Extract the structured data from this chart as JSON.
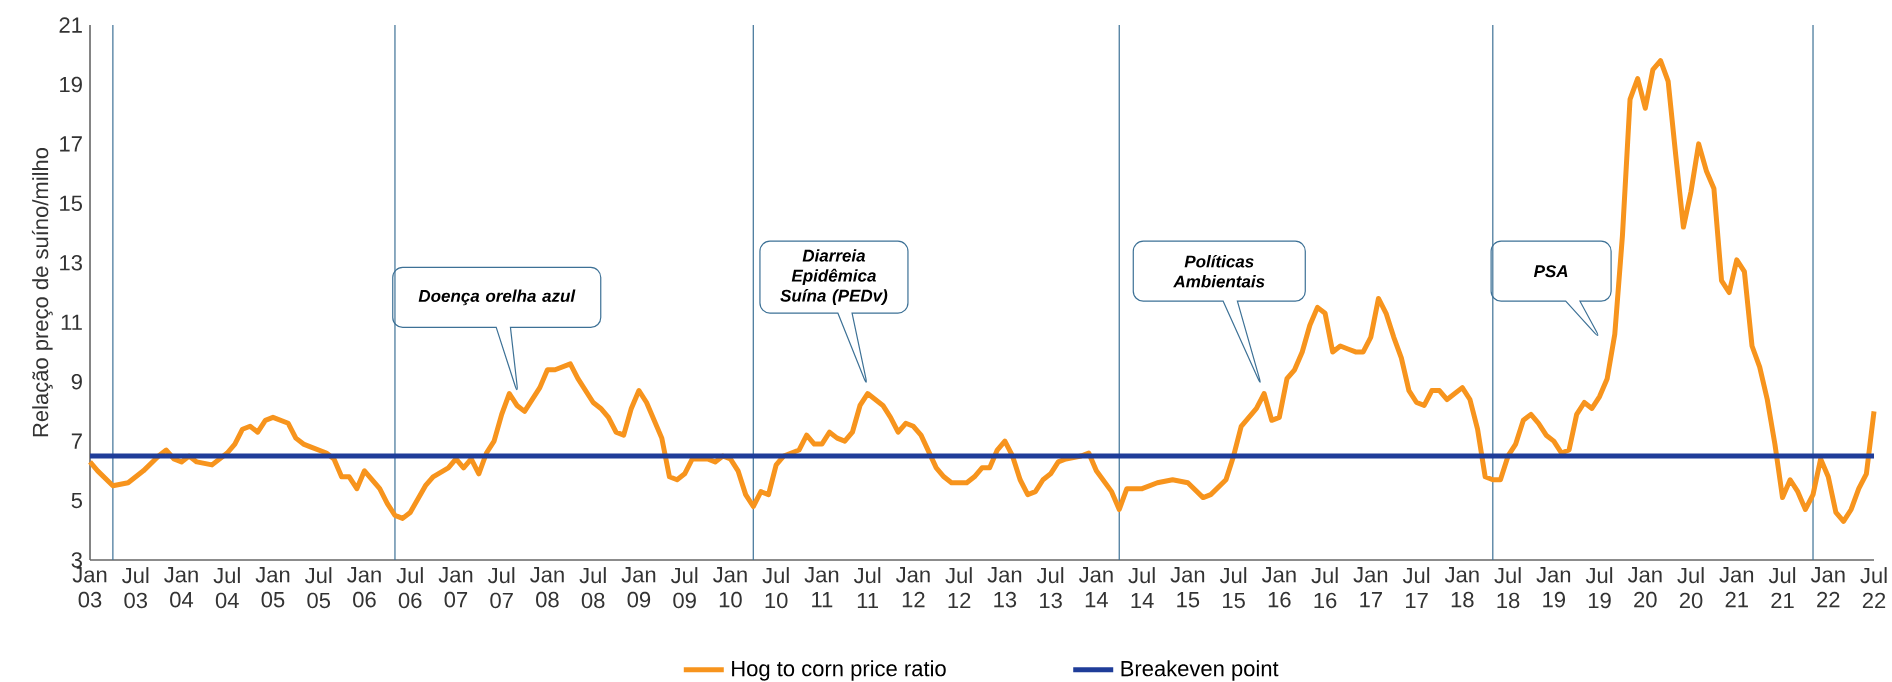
{
  "chart_data": {
    "type": "line",
    "ylabel": "Relação preço de suíno/milho",
    "xlim": [
      "2003-01",
      "2022-07"
    ],
    "ylim": [
      3,
      21
    ],
    "yticks": [
      3,
      5,
      7,
      9,
      11,
      13,
      15,
      17,
      19,
      21
    ],
    "xticks": [
      {
        "value": "2003-01",
        "label": "Jan 03"
      },
      {
        "value": "2003-07",
        "label": "Jul 03"
      },
      {
        "value": "2004-01",
        "label": "Jan 04"
      },
      {
        "value": "2004-07",
        "label": "Jul 04"
      },
      {
        "value": "2005-01",
        "label": "Jan 05"
      },
      {
        "value": "2005-07",
        "label": "Jul 05"
      },
      {
        "value": "2006-01",
        "label": "Jan 06"
      },
      {
        "value": "2006-07",
        "label": "Jul 06"
      },
      {
        "value": "2007-01",
        "label": "Jan 07"
      },
      {
        "value": "2007-07",
        "label": "Jul 07"
      },
      {
        "value": "2008-01",
        "label": "Jan 08"
      },
      {
        "value": "2008-07",
        "label": "Jul 08"
      },
      {
        "value": "2009-01",
        "label": "Jan 09"
      },
      {
        "value": "2009-07",
        "label": "Jul 09"
      },
      {
        "value": "2010-01",
        "label": "Jan 10"
      },
      {
        "value": "2010-07",
        "label": "Jul 10"
      },
      {
        "value": "2011-01",
        "label": "Jan 11"
      },
      {
        "value": "2011-07",
        "label": "Jul 11"
      },
      {
        "value": "2012-01",
        "label": "Jan 12"
      },
      {
        "value": "2012-07",
        "label": "Jul 12"
      },
      {
        "value": "2013-01",
        "label": "Jan 13"
      },
      {
        "value": "2013-07",
        "label": "Jul 13"
      },
      {
        "value": "2014-01",
        "label": "Jan 14"
      },
      {
        "value": "2014-07",
        "label": "Jul 14"
      },
      {
        "value": "2015-01",
        "label": "Jan 15"
      },
      {
        "value": "2015-07",
        "label": "Jul 15"
      },
      {
        "value": "2016-01",
        "label": "Jan 16"
      },
      {
        "value": "2016-07",
        "label": "Jul 16"
      },
      {
        "value": "2017-01",
        "label": "Jan 17"
      },
      {
        "value": "2017-07",
        "label": "Jul 17"
      },
      {
        "value": "2018-01",
        "label": "Jan 18"
      },
      {
        "value": "2018-07",
        "label": "Jul 18"
      },
      {
        "value": "2019-01",
        "label": "Jan 19"
      },
      {
        "value": "2019-07",
        "label": "Jul 19"
      },
      {
        "value": "2020-01",
        "label": "Jan 20"
      },
      {
        "value": "2020-07",
        "label": "Jul 20"
      },
      {
        "value": "2021-01",
        "label": "Jan 21"
      },
      {
        "value": "2021-07",
        "label": "Jul 21"
      },
      {
        "value": "2022-01",
        "label": "Jan 22"
      },
      {
        "value": "2022-07",
        "label": "Jul 22"
      }
    ],
    "legend": "bottom",
    "series": [
      {
        "name": "Hog to corn price ratio",
        "color": "#f7941d",
        "x": [
          "2003-01",
          "2003-02",
          "2003-04",
          "2003-06",
          "2003-08",
          "2003-10",
          "2003-11",
          "2003-12",
          "2004-01",
          "2004-02",
          "2004-03",
          "2004-05",
          "2004-07",
          "2004-08",
          "2004-09",
          "2004-10",
          "2004-11",
          "2004-12",
          "2005-01",
          "2005-03",
          "2005-04",
          "2005-05",
          "2005-06",
          "2005-08",
          "2005-09",
          "2005-10",
          "2005-11",
          "2005-12",
          "2006-01",
          "2006-03",
          "2006-04",
          "2006-05",
          "2006-06",
          "2006-07",
          "2006-09",
          "2006-10",
          "2006-12",
          "2007-01",
          "2007-02",
          "2007-03",
          "2007-04",
          "2007-05",
          "2007-06",
          "2007-07",
          "2007-08",
          "2007-09",
          "2007-10",
          "2007-12",
          "2008-01",
          "2008-02",
          "2008-04",
          "2008-05",
          "2008-07",
          "2008-08",
          "2008-09",
          "2008-10",
          "2008-11",
          "2008-12",
          "2009-01",
          "2009-02",
          "2009-04",
          "2009-05",
          "2009-06",
          "2009-07",
          "2009-08",
          "2009-10",
          "2009-11",
          "2009-12",
          "2010-01",
          "2010-02",
          "2010-03",
          "2010-04",
          "2010-05",
          "2010-06",
          "2010-07",
          "2010-08",
          "2010-10",
          "2010-11",
          "2010-12",
          "2011-01",
          "2011-02",
          "2011-03",
          "2011-04",
          "2011-05",
          "2011-06",
          "2011-07",
          "2011-09",
          "2011-10",
          "2011-11",
          "2011-12",
          "2012-01",
          "2012-02",
          "2012-04",
          "2012-05",
          "2012-06",
          "2012-08",
          "2012-09",
          "2012-10",
          "2012-11",
          "2012-12",
          "2013-01",
          "2013-02",
          "2013-03",
          "2013-04",
          "2013-05",
          "2013-06",
          "2013-07",
          "2013-08",
          "2013-09",
          "2013-11",
          "2013-12",
          "2014-01",
          "2014-03",
          "2014-04",
          "2014-05",
          "2014-07",
          "2014-09",
          "2014-11",
          "2015-01",
          "2015-03",
          "2015-04",
          "2015-06",
          "2015-07",
          "2015-08",
          "2015-09",
          "2015-10",
          "2015-11",
          "2015-12",
          "2016-01",
          "2016-02",
          "2016-03",
          "2016-04",
          "2016-05",
          "2016-06",
          "2016-07",
          "2016-08",
          "2016-09",
          "2016-10",
          "2016-11",
          "2016-12",
          "2017-01",
          "2017-02",
          "2017-03",
          "2017-04",
          "2017-05",
          "2017-06",
          "2017-07",
          "2017-08",
          "2017-09",
          "2017-10",
          "2017-11",
          "2017-12",
          "2018-01",
          "2018-02",
          "2018-03",
          "2018-04",
          "2018-05",
          "2018-06",
          "2018-07",
          "2018-08",
          "2018-09",
          "2018-10",
          "2018-11",
          "2018-12",
          "2019-01",
          "2019-02",
          "2019-03",
          "2019-04",
          "2019-05",
          "2019-06",
          "2019-07",
          "2019-08",
          "2019-09",
          "2019-10",
          "2019-11",
          "2019-12",
          "2020-01",
          "2020-02",
          "2020-03",
          "2020-04",
          "2020-05",
          "2020-06",
          "2020-07",
          "2020-08",
          "2020-09",
          "2020-10",
          "2020-11",
          "2020-12",
          "2021-01",
          "2021-02",
          "2021-03",
          "2021-04",
          "2021-05",
          "2021-06",
          "2021-07",
          "2021-08",
          "2021-09",
          "2021-10",
          "2021-11",
          "2021-12",
          "2022-01",
          "2022-02",
          "2022-03",
          "2022-04",
          "2022-05",
          "2022-06",
          "2022-07"
        ],
        "values": [
          6.3,
          6.0,
          5.5,
          5.6,
          6.0,
          6.5,
          6.7,
          6.4,
          6.3,
          6.5,
          6.3,
          6.2,
          6.6,
          6.9,
          7.4,
          7.5,
          7.3,
          7.7,
          7.8,
          7.6,
          7.1,
          6.9,
          6.8,
          6.6,
          6.4,
          5.8,
          5.8,
          5.4,
          6.0,
          5.4,
          4.9,
          4.5,
          4.4,
          4.6,
          5.5,
          5.8,
          6.1,
          6.4,
          6.1,
          6.4,
          5.9,
          6.6,
          7.0,
          7.9,
          8.6,
          8.2,
          8.0,
          8.8,
          9.4,
          9.4,
          9.6,
          9.1,
          8.3,
          8.1,
          7.8,
          7.3,
          7.2,
          8.1,
          8.7,
          8.3,
          7.1,
          5.8,
          5.7,
          5.9,
          6.4,
          6.4,
          6.3,
          6.5,
          6.4,
          6.0,
          5.2,
          4.8,
          5.3,
          5.2,
          6.2,
          6.5,
          6.7,
          7.2,
          6.9,
          6.9,
          7.3,
          7.1,
          7.0,
          7.3,
          8.2,
          8.6,
          8.2,
          7.8,
          7.3,
          7.6,
          7.5,
          7.2,
          6.1,
          5.8,
          5.6,
          5.6,
          5.8,
          6.1,
          6.1,
          6.7,
          7.0,
          6.5,
          5.7,
          5.2,
          5.3,
          5.7,
          5.9,
          6.3,
          6.4,
          6.5,
          6.6,
          6.0,
          5.3,
          4.7,
          5.4,
          5.4,
          5.6,
          5.7,
          5.6,
          5.1,
          5.2,
          5.7,
          6.5,
          7.5,
          7.8,
          8.1,
          8.6,
          7.7,
          7.8,
          9.1,
          9.4,
          10.0,
          10.9,
          11.5,
          11.3,
          10.0,
          10.2,
          10.1,
          10.0,
          10.0,
          10.5,
          11.8,
          11.3,
          10.5,
          9.8,
          8.7,
          8.3,
          8.2,
          8.7,
          8.7,
          8.4,
          8.6,
          8.8,
          8.4,
          7.4,
          5.8,
          5.7,
          5.7,
          6.5,
          6.9,
          7.7,
          7.9,
          7.6,
          7.2,
          7.0,
          6.6,
          6.7,
          7.9,
          8.3,
          8.1,
          8.5,
          9.1,
          10.6,
          13.9,
          18.5,
          19.2,
          18.2,
          19.5,
          19.8,
          19.1,
          16.6,
          14.2,
          15.4,
          17.0,
          16.1,
          15.5,
          12.4,
          12.0,
          13.1,
          12.7,
          10.2,
          9.5,
          8.4,
          6.9,
          5.1,
          5.7,
          5.3,
          4.7,
          5.2,
          6.4,
          5.8,
          4.6,
          4.3,
          4.7,
          5.4,
          5.9,
          8.0
        ]
      },
      {
        "name": "Breakeven point",
        "color": "#1f3d99",
        "x": [
          "2003-01",
          "2022-07"
        ],
        "values": [
          6.5,
          6.5
        ]
      }
    ],
    "ref_lines": [
      {
        "axis": "x",
        "value": "2003-04",
        "color": "#3d7196"
      },
      {
        "axis": "x",
        "value": "2006-05",
        "color": "#3d7196"
      },
      {
        "axis": "x",
        "value": "2010-04",
        "color": "#3d7196"
      },
      {
        "axis": "x",
        "value": "2014-04",
        "color": "#3d7196"
      },
      {
        "axis": "x",
        "value": "2018-05",
        "color": "#3d7196"
      },
      {
        "axis": "x",
        "value": "2021-11",
        "color": "#3d7196"
      }
    ],
    "annotations": [
      "Doença orelha azul",
      "Diarreia Epidêmica Suína (PEDv)",
      "Políticas Ambientais",
      "PSA"
    ]
  }
}
